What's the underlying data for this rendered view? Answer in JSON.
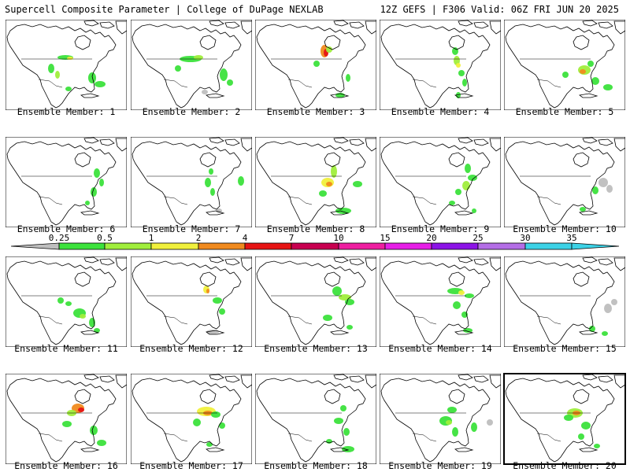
{
  "header": {
    "left_title": "Supercell Composite Parameter | College of DuPage NEXLAB",
    "right_title": "12Z GEFS | F306 Valid: 06Z FRI JUN 20 2025"
  },
  "colorbar": {
    "ticks": [
      "0.25",
      "0.5",
      "1",
      "2",
      "4",
      "7",
      "10",
      "15",
      "20",
      "25",
      "30",
      "35"
    ],
    "colors": [
      "#bebebe",
      "#3ce23c",
      "#a0ee3c",
      "#f0f03c",
      "#f08a1e",
      "#e61414",
      "#c80050",
      "#ee1ea0",
      "#e61ee6",
      "#8c14e6",
      "#b46ee6",
      "#3cd2e6"
    ]
  },
  "members": [
    {
      "label": "Ensemble Member: 1"
    },
    {
      "label": "Ensemble Member: 2"
    },
    {
      "label": "Ensemble Member: 3"
    },
    {
      "label": "Ensemble Member: 4"
    },
    {
      "label": "Ensemble Member: 5"
    },
    {
      "label": "Ensemble Member: 6"
    },
    {
      "label": "Ensemble Member: 7"
    },
    {
      "label": "Ensemble Member: 8"
    },
    {
      "label": "Ensemble Member: 9"
    },
    {
      "label": "Ensemble Member: 10"
    },
    {
      "label": "Ensemble Member: 11"
    },
    {
      "label": "Ensemble Member: 12"
    },
    {
      "label": "Ensemble Member: 13"
    },
    {
      "label": "Ensemble Member: 14"
    },
    {
      "label": "Ensemble Member: 15"
    },
    {
      "label": "Ensemble Member: 16"
    },
    {
      "label": "Ensemble Member: 17"
    },
    {
      "label": "Ensemble Member: 18"
    },
    {
      "label": "Ensemble Member: 19"
    },
    {
      "label": "Ensemble Member: 20"
    }
  ]
}
